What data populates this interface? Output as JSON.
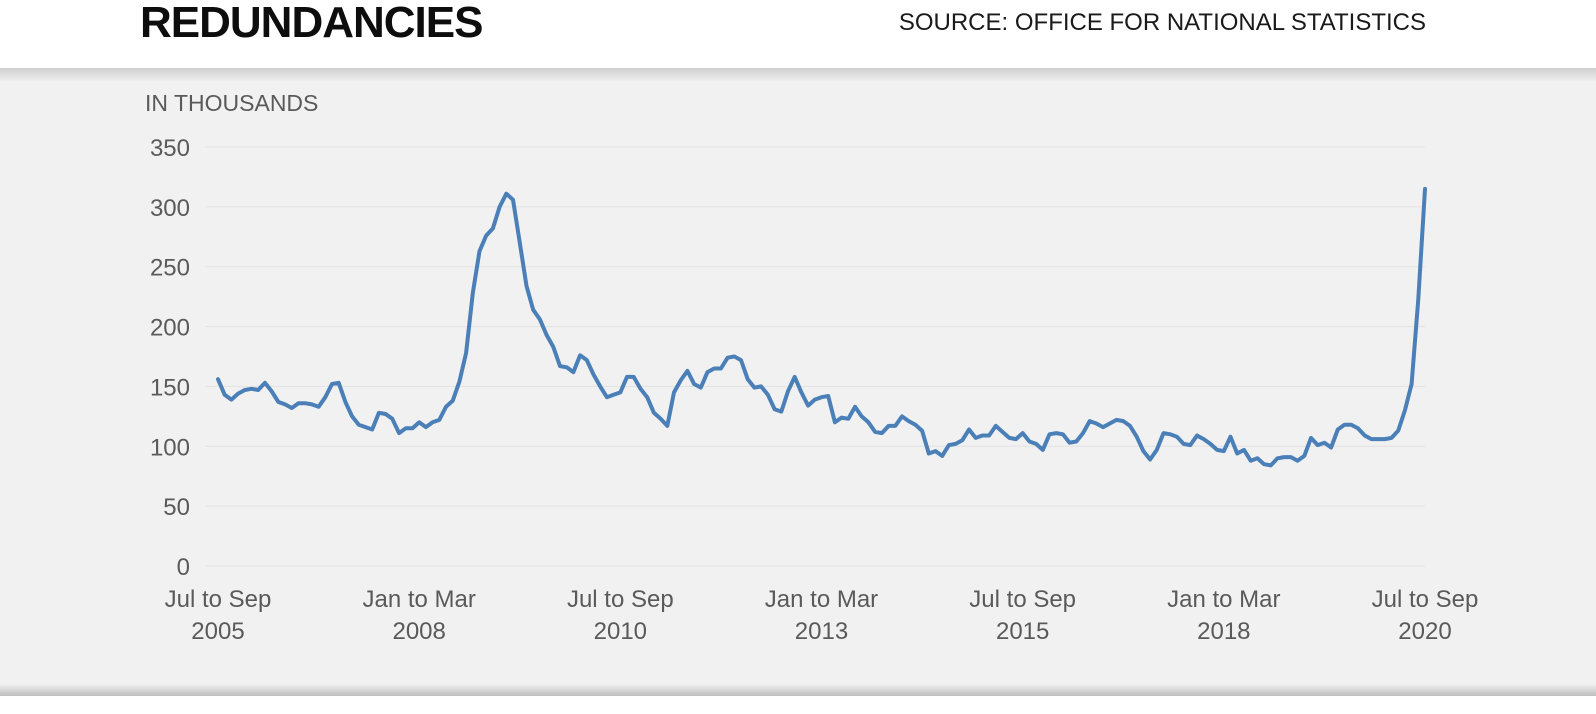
{
  "header": {
    "title": "REDUNDANCIES",
    "source": "SOURCE: OFFICE FOR NATIONAL STATISTICS"
  },
  "colors": {
    "line": "#4a7fb8",
    "panel_background": "#f1f1f1",
    "gridline": "#e2e2e2"
  },
  "chart_data": {
    "type": "line",
    "title": "REDUNDANCIES",
    "ylabel": "IN THOUSANDS",
    "ylim": [
      0,
      350
    ],
    "yticks": [
      0,
      50,
      100,
      150,
      200,
      250,
      300,
      350
    ],
    "grid": true,
    "x_start": "Jul to Sep 2005",
    "x_end": "Jul to Sep 2020",
    "x_ticks": [
      {
        "index": 0,
        "line1": "Jul to Sep",
        "line2": "2005"
      },
      {
        "index": 30,
        "line1": "Jan to Mar",
        "line2": "2008"
      },
      {
        "index": 60,
        "line1": "Jul to Sep",
        "line2": "2010"
      },
      {
        "index": 90,
        "line1": "Jan to Mar",
        "line2": "2013"
      },
      {
        "index": 120,
        "line1": "Jul to Sep",
        "line2": "2015"
      },
      {
        "index": 150,
        "line1": "Jan to Mar",
        "line2": "2018"
      },
      {
        "index": 180,
        "line1": "Jul to Sep",
        "line2": "2020"
      }
    ],
    "series": [
      {
        "values": [
          156,
          143,
          139,
          144,
          147,
          148,
          147,
          153,
          146,
          137,
          135,
          132,
          136,
          136,
          135,
          133,
          141,
          152,
          153,
          137,
          125,
          118,
          116,
          114,
          128,
          127,
          123,
          111,
          115,
          115,
          120,
          116,
          120,
          122,
          133,
          138,
          154,
          178,
          228,
          263,
          276,
          282,
          300,
          311,
          306,
          270,
          234,
          214,
          206,
          193,
          183,
          167,
          166,
          162,
          176,
          172,
          160,
          150,
          141,
          143,
          145,
          158,
          158,
          148,
          141,
          128,
          123,
          117,
          145,
          155,
          163,
          152,
          149,
          162,
          165,
          165,
          174,
          175,
          172,
          156,
          149,
          150,
          143,
          131,
          129,
          146,
          158,
          145,
          134,
          139,
          141,
          142,
          120,
          124,
          123,
          133,
          125,
          120,
          112,
          111,
          117,
          117,
          125,
          121,
          118,
          113,
          94,
          96,
          92,
          101,
          102,
          105,
          114,
          107,
          109,
          109,
          117,
          112,
          107,
          106,
          111,
          104,
          102,
          97,
          110,
          111,
          110,
          103,
          104,
          111,
          121,
          119,
          116,
          119,
          122,
          121,
          117,
          108,
          96,
          89,
          97,
          111,
          110,
          108,
          102,
          101,
          109,
          106,
          102,
          97,
          96,
          108,
          94,
          97,
          88,
          90,
          85,
          84,
          90,
          91,
          91,
          88,
          92,
          107,
          101,
          103,
          99,
          114,
          118,
          118,
          115,
          109,
          106,
          106,
          106,
          107,
          113,
          130,
          152,
          223,
          315
        ]
      }
    ]
  }
}
